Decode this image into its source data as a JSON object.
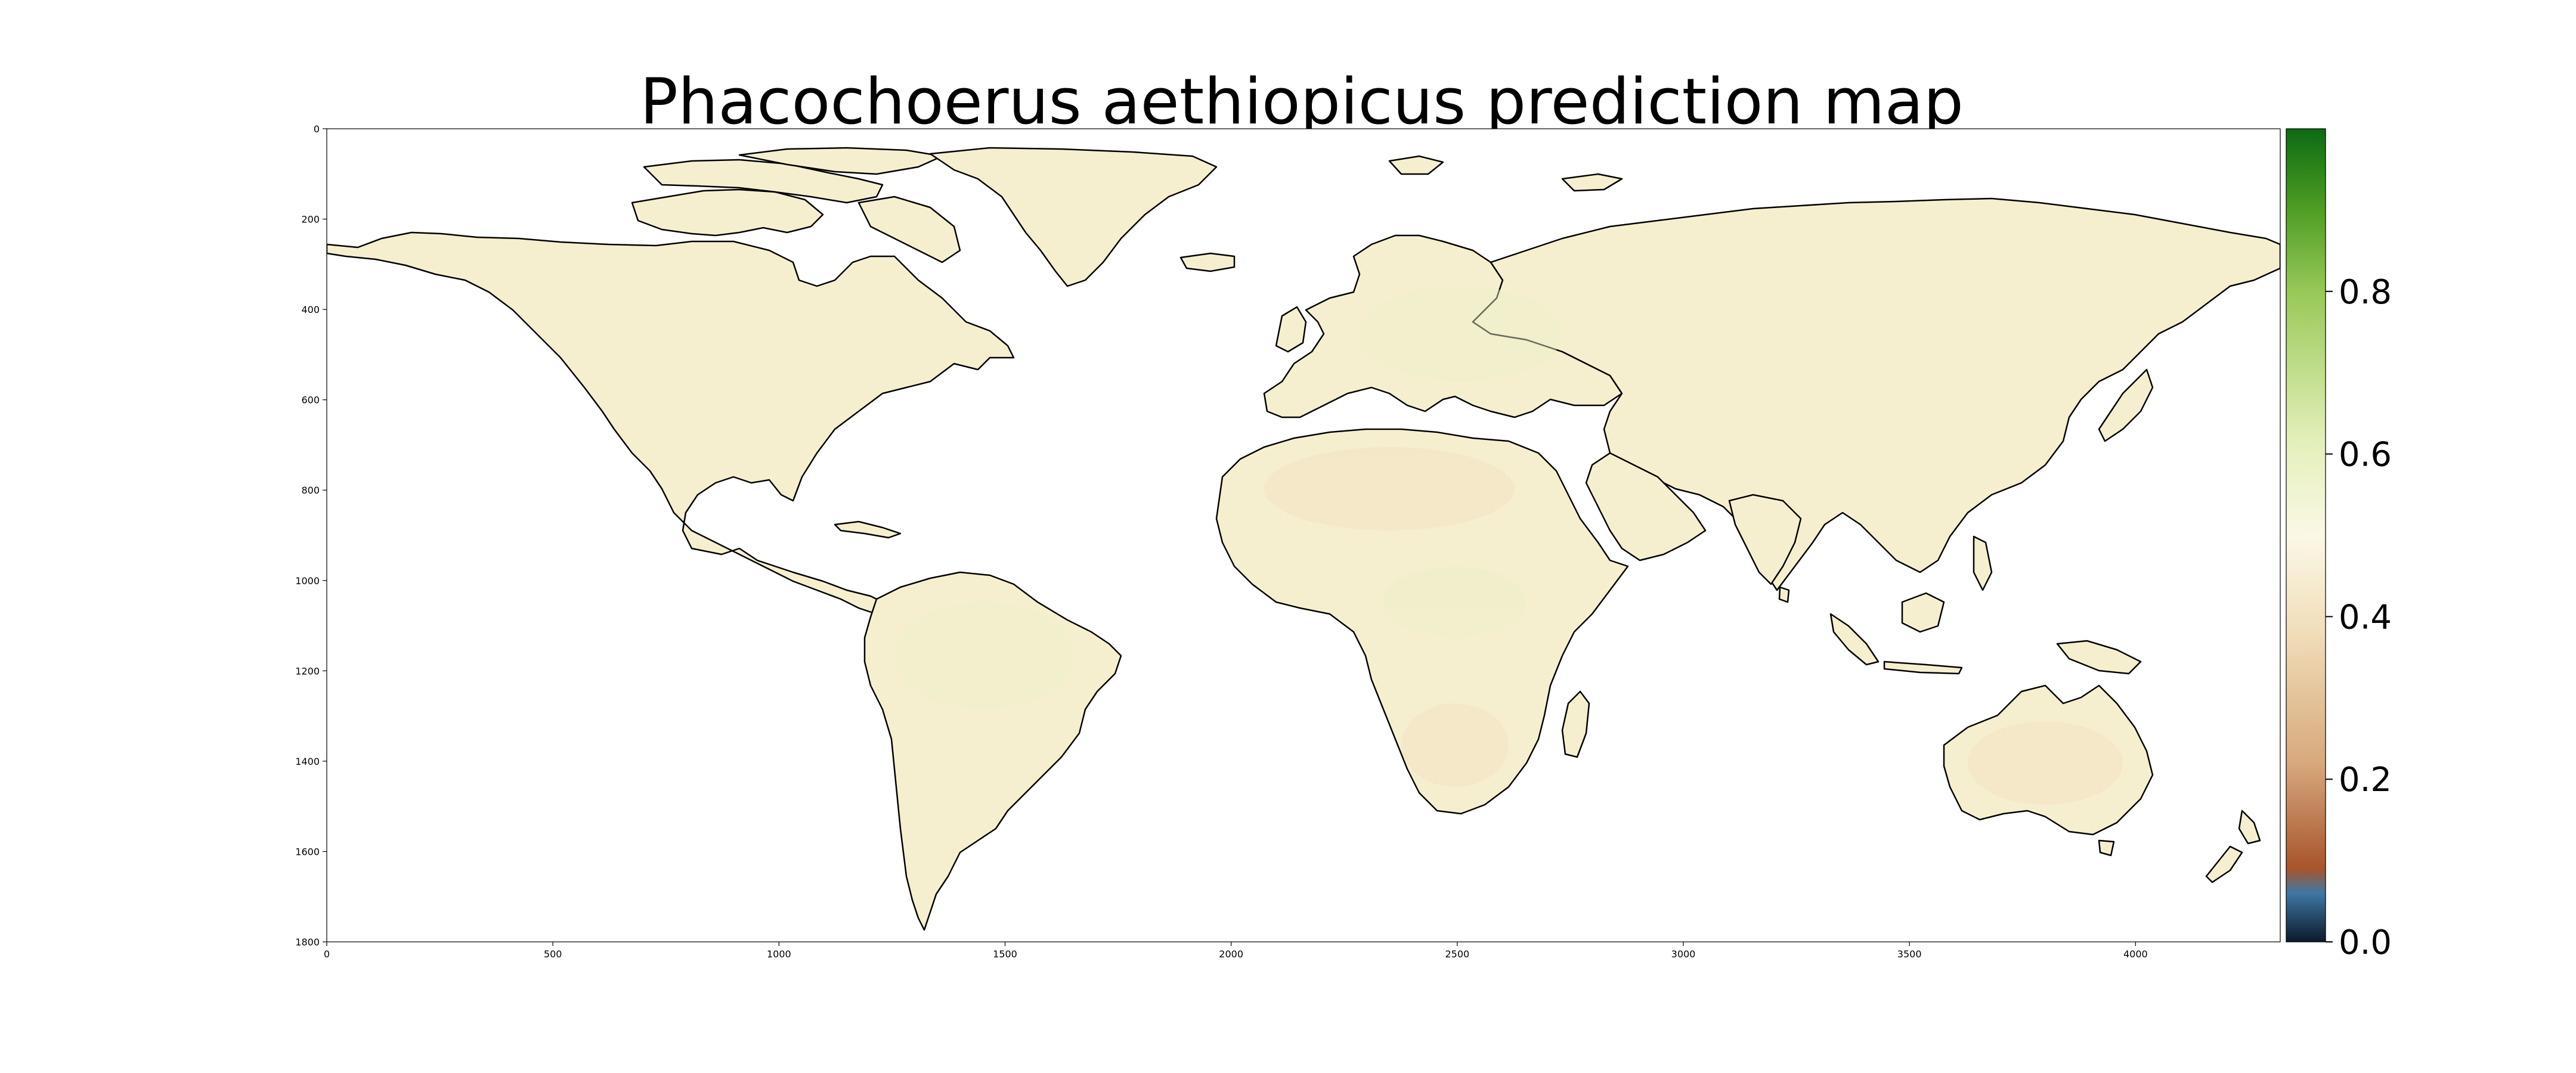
{
  "title": "Phacochoerus aethiopicus prediction map",
  "map": {
    "type": "raster-prediction-map",
    "x_ticks": [
      "0",
      "500",
      "1000",
      "1500",
      "2000",
      "2500",
      "3000",
      "3500",
      "4000"
    ],
    "y_ticks": [
      "0",
      "200",
      "400",
      "600",
      "800",
      "1000",
      "1200",
      "1400",
      "1600",
      "1800"
    ],
    "x_range": [
      0,
      4320
    ],
    "y_range": [
      0,
      1800
    ],
    "land_color": "#f6efcf",
    "land_tint_green": "#ecefc8",
    "land_tint_tan": "#f2dfc0",
    "coastline_color": "#000000",
    "background_color": "#ffffff"
  },
  "colorbar": {
    "ticks": [
      "0.0",
      "0.2",
      "0.4",
      "0.6",
      "0.8"
    ],
    "range": [
      0,
      1
    ],
    "stops": [
      {
        "value": 0.0,
        "color": "#0b1a2c"
      },
      {
        "value": 0.06,
        "color": "#3f77a3"
      },
      {
        "value": 0.09,
        "color": "#a8542c"
      },
      {
        "value": 0.22,
        "color": "#d7a97c"
      },
      {
        "value": 0.38,
        "color": "#f1ddb9"
      },
      {
        "value": 0.5,
        "color": "#fbf8e6"
      },
      {
        "value": 0.62,
        "color": "#e2efb8"
      },
      {
        "value": 0.8,
        "color": "#98c857"
      },
      {
        "value": 0.9,
        "color": "#4f9e24"
      },
      {
        "value": 1.0,
        "color": "#0c6b12"
      }
    ]
  }
}
